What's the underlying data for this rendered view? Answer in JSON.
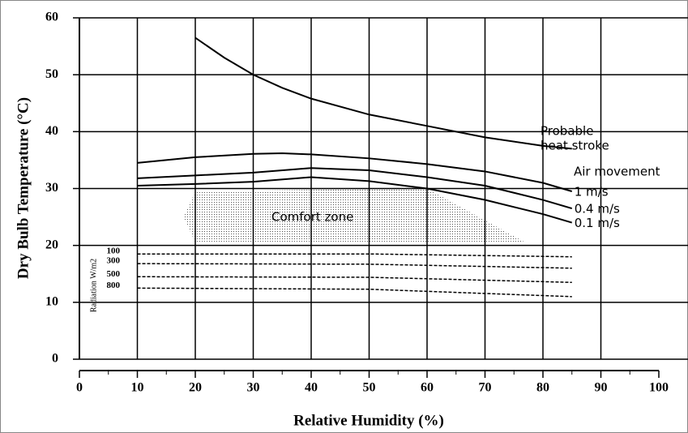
{
  "chart_data": {
    "type": "line",
    "xlabel": "Relative Humidity (%)",
    "ylabel": "Dry Bulb Temperature (°C)",
    "xlim": [
      0,
      100
    ],
    "ylim": [
      0,
      60
    ],
    "xticks": [
      0,
      10,
      20,
      30,
      40,
      50,
      60,
      70,
      80,
      90,
      100
    ],
    "yticks": [
      0,
      10,
      20,
      30,
      40,
      50,
      60
    ],
    "grid": true,
    "series": [
      {
        "color": "#000000",
        "x": [
          20,
          25,
          30,
          35,
          40,
          50,
          60,
          70,
          80,
          85
        ],
        "values": [
          56.5,
          53,
          50,
          47.7,
          45.8,
          43,
          41,
          39,
          37.5,
          37
        ]
      },
      {
        "name": "1 m/s",
        "color": "#000000",
        "x": [
          10,
          20,
          30,
          35,
          40,
          50,
          60,
          70,
          80,
          85
        ],
        "values": [
          34.5,
          35.5,
          36.1,
          36.2,
          36,
          35.3,
          34.3,
          33,
          31,
          29.5
        ]
      },
      {
        "name": "0.4 m/s",
        "color": "#000000",
        "x": [
          10,
          20,
          30,
          40,
          50,
          60,
          70,
          80,
          85
        ],
        "values": [
          31.8,
          32.3,
          32.8,
          33.6,
          33.2,
          32,
          30.5,
          28,
          26.5
        ]
      },
      {
        "name": "0.1 m/s",
        "color": "#000000",
        "x": [
          10,
          20,
          30,
          40,
          50,
          60,
          70,
          80,
          85
        ],
        "values": [
          30.5,
          30.8,
          31.2,
          32,
          31.3,
          30,
          28,
          25.5,
          24
        ]
      },
      {
        "name": "100",
        "color": "#000000",
        "dashed": true,
        "x": [
          10,
          50,
          85
        ],
        "values": [
          18.5,
          18.5,
          18
        ]
      },
      {
        "name": "300",
        "color": "#000000",
        "dashed": true,
        "x": [
          10,
          50,
          85
        ],
        "values": [
          16.8,
          16.7,
          16
        ]
      },
      {
        "name": "500",
        "color": "#000000",
        "dashed": true,
        "x": [
          10,
          50,
          85
        ],
        "values": [
          14.5,
          14.4,
          13.5
        ]
      },
      {
        "name": "800",
        "color": "#000000",
        "dashed": true,
        "x": [
          10,
          50,
          85
        ],
        "values": [
          12.5,
          12.3,
          11
        ]
      }
    ],
    "comfort_zone": {
      "label": "Comfort zone",
      "x": [
        18,
        20,
        60,
        77,
        20
      ],
      "values": [
        25,
        29.5,
        30,
        20.5,
        20.5
      ]
    },
    "annotations": [
      "Probable",
      "heat stroke",
      "Air movement",
      "Radiation W/m2"
    ]
  }
}
